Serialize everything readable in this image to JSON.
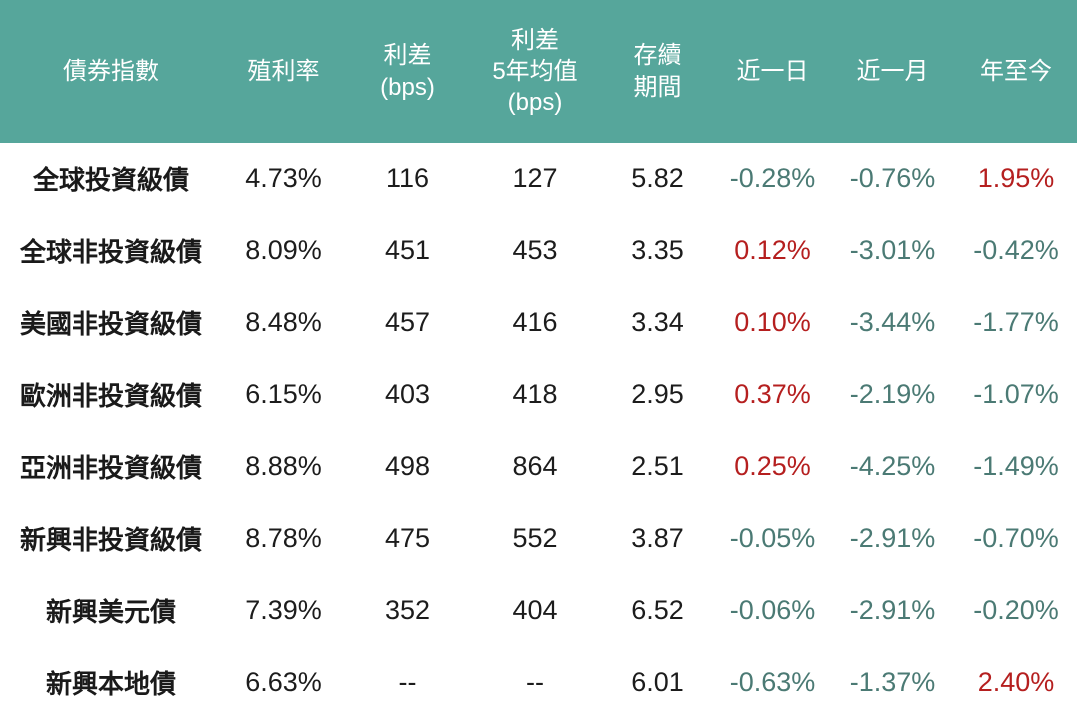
{
  "colors": {
    "header_background": "#56a69b",
    "header_text": "#ffffff",
    "body_text": "#1c1c1c",
    "negative_change_text": "#4b7a74",
    "positive_change_text": "#b51f1f",
    "page_background": "#ffffff"
  },
  "chart_data": {
    "type": "table",
    "columns": [
      {
        "id": "bond-index",
        "label": "債券指數"
      },
      {
        "id": "yield",
        "label": "殖利率"
      },
      {
        "id": "spread-bps",
        "label": "利差\n(bps)"
      },
      {
        "id": "spread-5y-avg-bps",
        "label": "利差\n5年均值\n(bps)"
      },
      {
        "id": "duration",
        "label": "存續\n期間"
      },
      {
        "id": "change-1d",
        "label": "近一日"
      },
      {
        "id": "change-1m",
        "label": "近一月"
      },
      {
        "id": "change-ytd",
        "label": "年至今"
      }
    ],
    "rows": [
      {
        "cells": [
          "全球投資級債",
          "4.73%",
          "116",
          "127",
          "5.82",
          "-0.28%",
          "-0.76%",
          "1.95%"
        ]
      },
      {
        "cells": [
          "全球非投資級債",
          "8.09%",
          "451",
          "453",
          "3.35",
          "0.12%",
          "-3.01%",
          "-0.42%"
        ]
      },
      {
        "cells": [
          "美國非投資級債",
          "8.48%",
          "457",
          "416",
          "3.34",
          "0.10%",
          "-3.44%",
          "-1.77%"
        ]
      },
      {
        "cells": [
          "歐洲非投資級債",
          "6.15%",
          "403",
          "418",
          "2.95",
          "0.37%",
          "-2.19%",
          "-1.07%"
        ]
      },
      {
        "cells": [
          "亞洲非投資級債",
          "8.88%",
          "498",
          "864",
          "2.51",
          "0.25%",
          "-4.25%",
          "-1.49%"
        ]
      },
      {
        "cells": [
          "新興非投資級債",
          "8.78%",
          "475",
          "552",
          "3.87",
          "-0.05%",
          "-2.91%",
          "-0.70%"
        ]
      },
      {
        "cells": [
          "新興美元債",
          "7.39%",
          "352",
          "404",
          "6.52",
          "-0.06%",
          "-2.91%",
          "-0.20%"
        ]
      },
      {
        "cells": [
          "新興本地債",
          "6.63%",
          "--",
          "--",
          "6.01",
          "-0.63%",
          "-1.37%",
          "2.40%"
        ]
      }
    ],
    "change_column_indexes": [
      5,
      6,
      7
    ],
    "missing_value_marker": "--"
  }
}
